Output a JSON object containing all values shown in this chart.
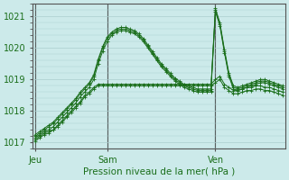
{
  "title": "Pression niveau de la mer( hPa )",
  "bg_color": "#cceaea",
  "grid_color": "#aacece",
  "line_color": "#1a6e1a",
  "marker_color": "#1a6e1a",
  "ylim": [
    1016.8,
    1021.4
  ],
  "yticks": [
    1017,
    1018,
    1019,
    1020,
    1021
  ],
  "day_labels": [
    "Jeu",
    "Sam",
    "Ven"
  ],
  "day_positions": [
    0,
    16,
    40
  ],
  "total_points": 56,
  "series": [
    [
      1017.1,
      1017.2,
      1017.3,
      1017.35,
      1017.4,
      1017.55,
      1017.7,
      1017.85,
      1018.0,
      1018.15,
      1018.3,
      1018.5,
      1018.6,
      1018.75,
      1018.85,
      1018.85,
      1018.85,
      1018.85,
      1018.85,
      1018.85,
      1018.85,
      1018.85,
      1018.85,
      1018.85,
      1018.85,
      1018.85,
      1018.85,
      1018.85,
      1018.85,
      1018.85,
      1018.85,
      1018.85,
      1018.85,
      1018.85,
      1018.85,
      1018.85,
      1018.85,
      1018.85,
      1018.85,
      1018.85,
      1019.0,
      1019.1,
      1018.85,
      1018.75,
      1018.65,
      1018.65,
      1018.7,
      1018.75,
      1018.75,
      1018.8,
      1018.8,
      1018.75,
      1018.75,
      1018.7,
      1018.65,
      1018.6
    ],
    [
      1017.05,
      1017.15,
      1017.25,
      1017.3,
      1017.4,
      1017.5,
      1017.65,
      1017.8,
      1017.95,
      1018.1,
      1018.25,
      1018.45,
      1018.55,
      1018.7,
      1018.8,
      1018.8,
      1018.8,
      1018.8,
      1018.8,
      1018.8,
      1018.8,
      1018.8,
      1018.8,
      1018.8,
      1018.8,
      1018.8,
      1018.8,
      1018.8,
      1018.8,
      1018.8,
      1018.8,
      1018.8,
      1018.8,
      1018.8,
      1018.8,
      1018.8,
      1018.8,
      1018.8,
      1018.8,
      1018.8,
      1018.9,
      1019.0,
      1018.75,
      1018.65,
      1018.55,
      1018.55,
      1018.6,
      1018.65,
      1018.65,
      1018.7,
      1018.7,
      1018.65,
      1018.65,
      1018.6,
      1018.55,
      1018.5
    ],
    [
      1017.15,
      1017.25,
      1017.35,
      1017.4,
      1017.5,
      1017.65,
      1017.8,
      1017.95,
      1018.1,
      1018.25,
      1018.45,
      1018.6,
      1018.75,
      1019.0,
      1019.5,
      1019.9,
      1020.2,
      1020.4,
      1020.5,
      1020.55,
      1020.55,
      1020.5,
      1020.45,
      1020.35,
      1020.2,
      1020.0,
      1019.8,
      1019.6,
      1019.4,
      1019.25,
      1019.1,
      1018.95,
      1018.85,
      1018.75,
      1018.7,
      1018.65,
      1018.6,
      1018.6,
      1018.6,
      1018.6,
      1021.15,
      1020.7,
      1019.85,
      1019.1,
      1018.7,
      1018.65,
      1018.7,
      1018.75,
      1018.8,
      1018.85,
      1018.9,
      1018.9,
      1018.85,
      1018.8,
      1018.75,
      1018.7
    ],
    [
      1017.2,
      1017.3,
      1017.4,
      1017.5,
      1017.6,
      1017.75,
      1017.9,
      1018.05,
      1018.2,
      1018.35,
      1018.55,
      1018.7,
      1018.85,
      1019.1,
      1019.6,
      1020.0,
      1020.3,
      1020.45,
      1020.55,
      1020.6,
      1020.6,
      1020.55,
      1020.5,
      1020.4,
      1020.25,
      1020.05,
      1019.85,
      1019.65,
      1019.45,
      1019.3,
      1019.15,
      1019.0,
      1018.9,
      1018.8,
      1018.75,
      1018.7,
      1018.65,
      1018.65,
      1018.65,
      1018.65,
      1021.2,
      1020.75,
      1019.9,
      1019.15,
      1018.75,
      1018.7,
      1018.75,
      1018.8,
      1018.85,
      1018.9,
      1018.95,
      1018.95,
      1018.9,
      1018.85,
      1018.8,
      1018.75
    ],
    [
      1017.25,
      1017.35,
      1017.45,
      1017.55,
      1017.65,
      1017.8,
      1017.95,
      1018.1,
      1018.25,
      1018.4,
      1018.6,
      1018.75,
      1018.9,
      1019.15,
      1019.65,
      1020.05,
      1020.35,
      1020.5,
      1020.6,
      1020.65,
      1020.65,
      1020.6,
      1020.55,
      1020.45,
      1020.3,
      1020.1,
      1019.9,
      1019.7,
      1019.5,
      1019.35,
      1019.2,
      1019.05,
      1018.95,
      1018.85,
      1018.8,
      1018.75,
      1018.7,
      1018.7,
      1018.7,
      1018.7,
      1021.25,
      1020.8,
      1019.95,
      1019.2,
      1018.8,
      1018.75,
      1018.8,
      1018.85,
      1018.9,
      1018.95,
      1019.0,
      1019.0,
      1018.95,
      1018.9,
      1018.85,
      1018.8
    ]
  ]
}
